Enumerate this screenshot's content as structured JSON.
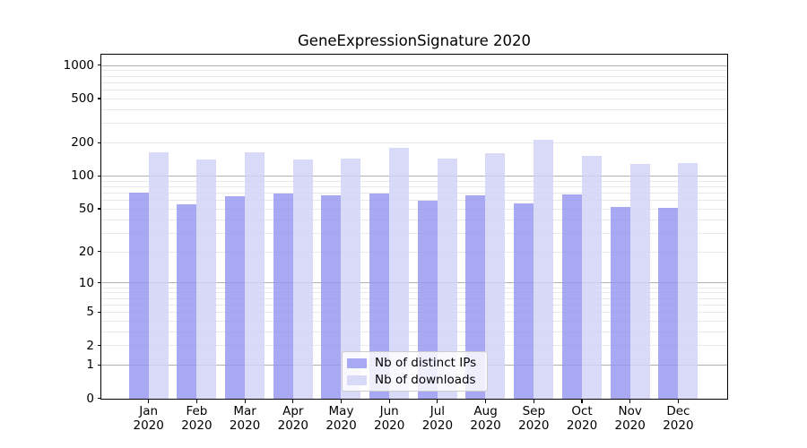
{
  "figure": {
    "title": "GeneExpressionSignature 2020",
    "background": "#ffffff"
  },
  "chart_data": {
    "type": "bar",
    "title": "GeneExpressionSignature 2020",
    "year": "2020",
    "categories": [
      "Jan",
      "Feb",
      "Mar",
      "Apr",
      "May",
      "Jun",
      "Jul",
      "Aug",
      "Sep",
      "Oct",
      "Nov",
      "Dec"
    ],
    "x_tick_second_line": "2020",
    "series": [
      {
        "name": "Nb of distinct IPs",
        "color": "#a9a9f3",
        "bar_fill": "rgba(150,150,240,0.82)",
        "values": [
          70,
          55,
          65,
          69,
          66,
          69,
          59,
          66,
          56,
          67,
          52,
          51
        ]
      },
      {
        "name": "Nb of downloads",
        "color": "#d9d9f8",
        "bar_fill": "rgba(210,210,247,0.85)",
        "values": [
          162,
          140,
          164,
          141,
          142,
          180,
          143,
          160,
          210,
          150,
          128,
          129
        ]
      }
    ],
    "y_axis": {
      "scale": "log1p",
      "ticks": [
        0,
        1,
        2,
        5,
        10,
        20,
        50,
        100,
        200,
        500,
        1000
      ],
      "major_gridlines": [
        1,
        10,
        100,
        1000
      ],
      "ylim": [
        0,
        1240
      ]
    },
    "legend": {
      "position": "lower-center",
      "entries": [
        "Nb of distinct IPs",
        "Nb of downloads"
      ]
    },
    "grid": true,
    "colors": {
      "major_grid": "#b0b0b0",
      "minor_grid": "#e9e9e9",
      "spine": "#000000",
      "text": "#000000",
      "background": "#ffffff"
    }
  }
}
